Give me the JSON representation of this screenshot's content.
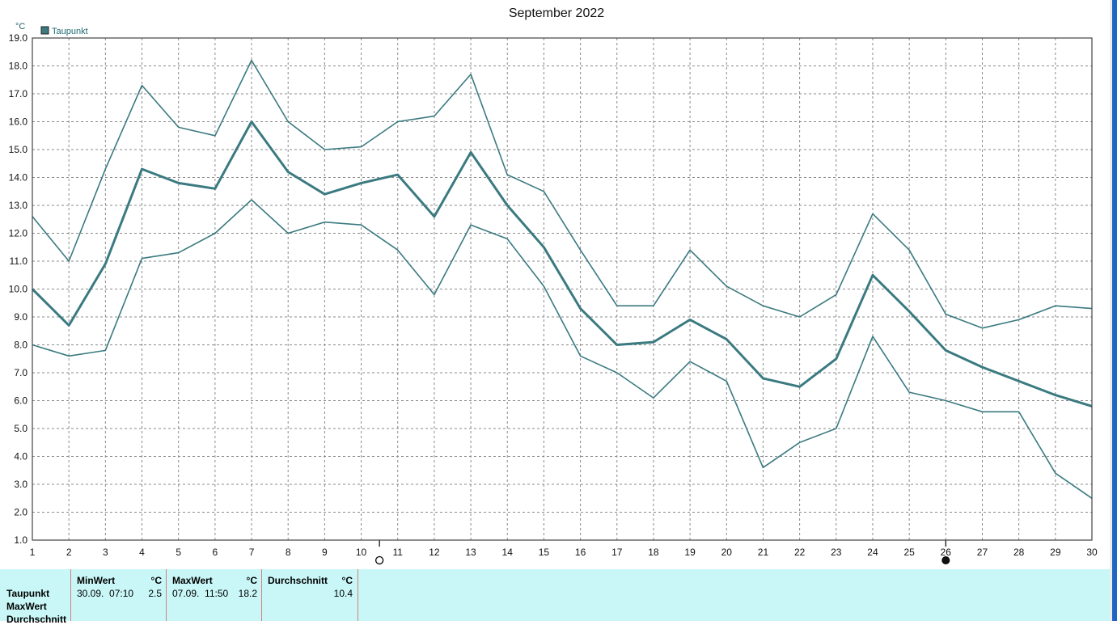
{
  "chart_data": {
    "type": "line",
    "title": "September 2022",
    "unit": "°C",
    "legend": [
      {
        "name": "Taupunkt",
        "color": "#3a7a80"
      }
    ],
    "x": [
      1,
      2,
      3,
      4,
      5,
      6,
      7,
      8,
      9,
      10,
      11,
      12,
      13,
      14,
      15,
      16,
      17,
      18,
      19,
      20,
      21,
      22,
      23,
      24,
      25,
      26,
      27,
      28,
      29,
      30
    ],
    "xlim": [
      1,
      30
    ],
    "ylim": [
      1.0,
      19.0
    ],
    "ytick_step": 1.0,
    "grid": true,
    "series": [
      {
        "role": "max",
        "values": [
          12.6,
          11.0,
          14.3,
          17.3,
          15.8,
          15.5,
          18.2,
          16.0,
          15.0,
          15.1,
          16.0,
          16.2,
          17.7,
          14.1,
          13.5,
          11.4,
          9.4,
          9.4,
          11.4,
          10.1,
          9.4,
          9.0,
          9.8,
          12.7,
          11.4,
          9.1,
          8.6,
          8.9,
          9.4,
          9.3
        ]
      },
      {
        "role": "avg",
        "values": [
          10.0,
          8.7,
          10.9,
          14.3,
          13.8,
          13.6,
          16.0,
          14.2,
          13.4,
          13.8,
          14.1,
          12.6,
          14.9,
          13.0,
          11.5,
          9.3,
          8.0,
          8.1,
          8.9,
          8.2,
          6.8,
          6.5,
          7.5,
          10.5,
          9.2,
          7.8,
          7.2,
          6.7,
          6.2,
          5.8
        ]
      },
      {
        "role": "min",
        "values": [
          8.0,
          7.6,
          7.8,
          11.1,
          11.3,
          12.0,
          13.2,
          12.0,
          12.4,
          12.3,
          11.4,
          9.8,
          12.3,
          11.8,
          10.1,
          7.6,
          7.0,
          6.1,
          7.4,
          6.7,
          3.6,
          4.5,
          5.0,
          8.3,
          6.3,
          6.0,
          5.6,
          5.6,
          3.4,
          2.5
        ]
      }
    ],
    "moon_phases": [
      {
        "day": 10.5,
        "phase": "full-moon-icon"
      },
      {
        "day": 26,
        "phase": "new-moon-icon"
      }
    ]
  },
  "stats": {
    "row_labels": [
      "Taupunkt",
      "MaxWert",
      "Durchschnitt"
    ],
    "columns": [
      {
        "header": "MinWert",
        "unit": "°C",
        "time": "30.09.  07:10",
        "value": "2.5"
      },
      {
        "header": "MaxWert",
        "unit": "°C",
        "time": "07.09.  11:50",
        "value": "18.2"
      },
      {
        "header": "Durchschnitt",
        "unit": "°C",
        "time": "",
        "value": "10.4"
      }
    ]
  }
}
